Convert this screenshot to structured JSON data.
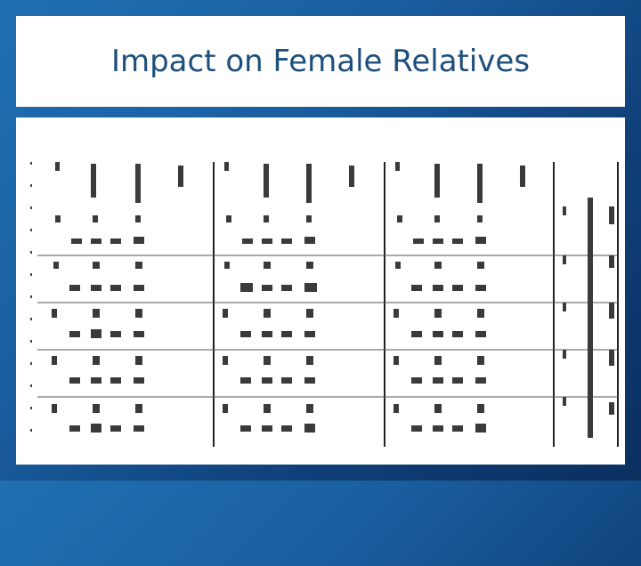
{
  "slide": {
    "title": "Impact on Female Relatives"
  },
  "figure": {
    "description_icon": "rotated-data-table-image",
    "accent_color": "#1d4f7c",
    "table_line_color": "#222222",
    "text_blur_color": "#3a3a3a"
  }
}
